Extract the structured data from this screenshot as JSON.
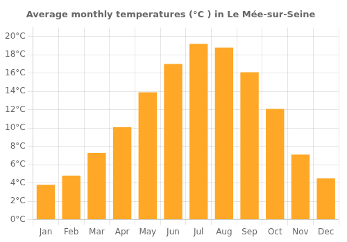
{
  "chart_data": {
    "type": "bar",
    "title": "Average monthly temperatures (°C ) in Le Mée-sur-Seine",
    "categories": [
      "Jan",
      "Feb",
      "Mar",
      "Apr",
      "May",
      "Jun",
      "Jul",
      "Aug",
      "Sep",
      "Oct",
      "Nov",
      "Dec"
    ],
    "values": [
      3.8,
      4.8,
      7.3,
      10.1,
      13.9,
      17.0,
      19.2,
      18.8,
      16.1,
      12.1,
      7.1,
      4.5
    ],
    "color": "#FFA726",
    "ylim": [
      0,
      21
    ],
    "yticks": [
      {
        "value": 0,
        "label": "0°C"
      },
      {
        "value": 2,
        "label": "2°C"
      },
      {
        "value": 4,
        "label": "4°C"
      },
      {
        "value": 6,
        "label": "6°C"
      },
      {
        "value": 8,
        "label": "8°C"
      },
      {
        "value": 10,
        "label": "10°C"
      },
      {
        "value": 12,
        "label": "12°C"
      },
      {
        "value": 14,
        "label": "14°C"
      },
      {
        "value": 16,
        "label": "16°C"
      },
      {
        "value": 18,
        "label": "18°C"
      },
      {
        "value": 20,
        "label": "20°C"
      }
    ],
    "grid": true
  }
}
